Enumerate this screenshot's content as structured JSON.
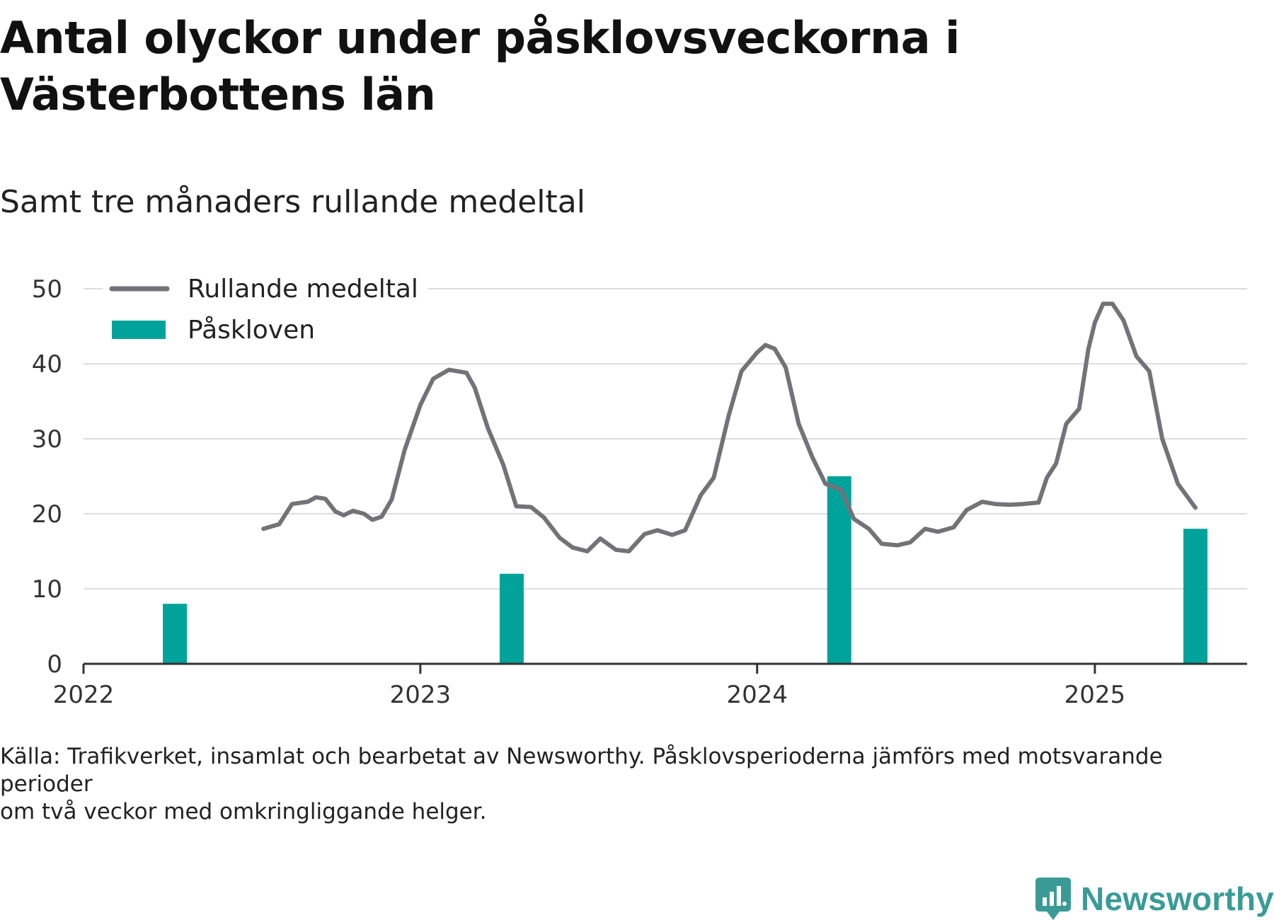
{
  "title": "Antal olyckor under påsklovsveckorna i Västerbottens län",
  "subtitle": "Samt tre månaders rullande medeltal",
  "footnote": {
    "line1": "Källa: Trafikverket, insamlat och bearbetat av Newsworthy. Påsklovsperioderna jämförs med motsvarande perioder",
    "line2": "om två veckor med omkringliggande helger."
  },
  "logo": {
    "text": "Newsworthy",
    "icon": "newsworthy-logo-icon",
    "color": "#3a9b96"
  },
  "colors": {
    "line": "#737278",
    "bar": "#00a39b",
    "grid": "#dddddd",
    "axis": "#333333"
  },
  "chart_data": {
    "type": "bar+line",
    "title": "Antal olyckor under påsklovsveckorna i Västerbottens län",
    "subtitle": "Samt tre månaders rullande medeltal",
    "xlabel": "",
    "ylabel": "",
    "ylim": [
      0,
      50
    ],
    "xlim": [
      "2022-01-01",
      "2025-06-15"
    ],
    "yticks": [
      0,
      10,
      20,
      30,
      40,
      50
    ],
    "xticks": [
      {
        "value": "2022-01-01",
        "label": "2022"
      },
      {
        "value": "2023-01-01",
        "label": "2023"
      },
      {
        "value": "2024-01-01",
        "label": "2024"
      },
      {
        "value": "2025-01-01",
        "label": "2025"
      }
    ],
    "grid": "horizontal",
    "legend": {
      "placement": "top-left"
    },
    "series": [
      {
        "name": "Rullande medeltal",
        "type": "line",
        "points": [
          [
            "2022-07-15",
            18.0
          ],
          [
            "2022-08-01",
            18.6
          ],
          [
            "2022-08-15",
            21.3
          ],
          [
            "2022-09-01",
            21.6
          ],
          [
            "2022-09-10",
            22.2
          ],
          [
            "2022-09-20",
            22.0
          ],
          [
            "2022-10-01",
            20.3
          ],
          [
            "2022-10-10",
            19.8
          ],
          [
            "2022-10-20",
            20.4
          ],
          [
            "2022-11-01",
            20.0
          ],
          [
            "2022-11-10",
            19.2
          ],
          [
            "2022-11-20",
            19.6
          ],
          [
            "2022-12-01",
            21.9
          ],
          [
            "2022-12-15",
            28.5
          ],
          [
            "2023-01-01",
            34.5
          ],
          [
            "2023-01-15",
            38.0
          ],
          [
            "2023-02-01",
            39.2
          ],
          [
            "2023-02-20",
            38.8
          ],
          [
            "2023-03-01",
            36.8
          ],
          [
            "2023-03-15",
            31.5
          ],
          [
            "2023-04-01",
            26.5
          ],
          [
            "2023-04-15",
            21.0
          ],
          [
            "2023-05-01",
            20.9
          ],
          [
            "2023-05-15",
            19.5
          ],
          [
            "2023-06-01",
            16.8
          ],
          [
            "2023-06-15",
            15.5
          ],
          [
            "2023-07-01",
            15.0
          ],
          [
            "2023-07-15",
            16.7
          ],
          [
            "2023-08-01",
            15.2
          ],
          [
            "2023-08-15",
            15.0
          ],
          [
            "2023-09-01",
            17.3
          ],
          [
            "2023-09-15",
            17.8
          ],
          [
            "2023-10-01",
            17.2
          ],
          [
            "2023-10-15",
            17.8
          ],
          [
            "2023-11-01",
            22.5
          ],
          [
            "2023-11-15",
            24.8
          ],
          [
            "2023-12-01",
            33.0
          ],
          [
            "2023-12-15",
            39.0
          ],
          [
            "2024-01-01",
            41.5
          ],
          [
            "2024-01-10",
            42.5
          ],
          [
            "2024-01-20",
            42.0
          ],
          [
            "2024-02-01",
            39.5
          ],
          [
            "2024-02-15",
            32.0
          ],
          [
            "2024-03-01",
            27.5
          ],
          [
            "2024-03-15",
            24.0
          ],
          [
            "2024-04-01",
            23.2
          ],
          [
            "2024-04-15",
            19.3
          ],
          [
            "2024-05-01",
            18.0
          ],
          [
            "2024-05-15",
            16.0
          ],
          [
            "2024-06-01",
            15.8
          ],
          [
            "2024-06-15",
            16.2
          ],
          [
            "2024-07-01",
            18.0
          ],
          [
            "2024-07-15",
            17.6
          ],
          [
            "2024-08-01",
            18.2
          ],
          [
            "2024-08-15",
            20.5
          ],
          [
            "2024-09-01",
            21.6
          ],
          [
            "2024-09-15",
            21.3
          ],
          [
            "2024-10-01",
            21.2
          ],
          [
            "2024-10-15",
            21.3
          ],
          [
            "2024-11-01",
            21.5
          ],
          [
            "2024-11-10",
            24.8
          ],
          [
            "2024-11-20",
            26.7
          ],
          [
            "2024-12-01",
            32.0
          ],
          [
            "2024-12-15",
            34.0
          ],
          [
            "2024-12-25",
            42.0
          ],
          [
            "2025-01-01",
            45.5
          ],
          [
            "2025-01-10",
            48.0
          ],
          [
            "2025-01-20",
            48.0
          ],
          [
            "2025-02-01",
            45.8
          ],
          [
            "2025-02-15",
            41.0
          ],
          [
            "2025-03-01",
            39.0
          ],
          [
            "2025-03-15",
            30.0
          ],
          [
            "2025-04-01",
            24.0
          ],
          [
            "2025-04-20",
            20.8
          ]
        ]
      },
      {
        "name": "Påskloven",
        "type": "bar",
        "points": [
          [
            "2022-04-10",
            8
          ],
          [
            "2023-04-10",
            12
          ],
          [
            "2024-03-30",
            25
          ],
          [
            "2025-04-20",
            18
          ]
        ]
      }
    ]
  }
}
